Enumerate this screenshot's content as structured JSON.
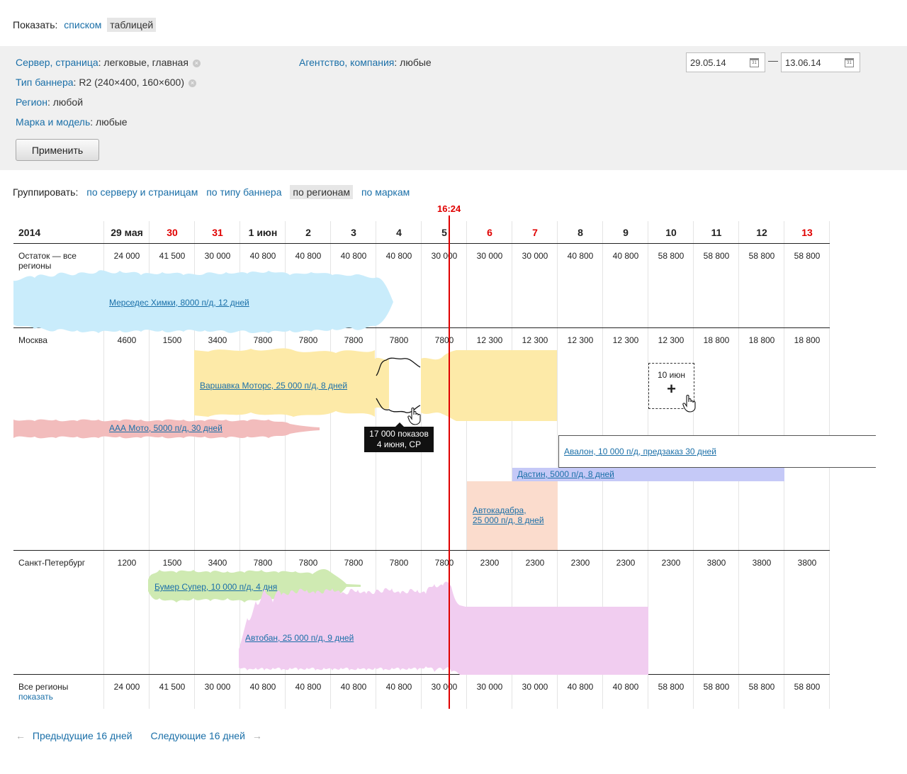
{
  "view": {
    "label": "Показать:",
    "list": "списком",
    "table": "таблицей"
  },
  "filters": {
    "server_link": "Сервер, страница",
    "server_val": ": легковые, главная",
    "banner_link": "Тип баннера",
    "banner_val": ": R2 (240×400, 160×600)",
    "region_link": "Регион",
    "region_val": ": любой",
    "brand_link": "Марка и модель",
    "brand_val": ": любые",
    "agency_link": "Агентство, компания",
    "agency_val": ": любые",
    "date_from": "29.05.14",
    "date_to": "13.06.14",
    "dash": "—",
    "apply": "Применить",
    "clear_symbol": "×"
  },
  "grouping": {
    "label": "Группировать:",
    "by_server": "по серверу и страницам",
    "by_type": "по типу баннера",
    "by_region": "по регионам",
    "by_brand": "по маркам"
  },
  "now_time": "16:24",
  "year": "2014",
  "days": [
    {
      "label": "29 мая",
      "weekend": false
    },
    {
      "label": "30",
      "weekend": true
    },
    {
      "label": "31",
      "weekend": true
    },
    {
      "label": "1 июн",
      "weekend": false
    },
    {
      "label": "2",
      "weekend": false
    },
    {
      "label": "3",
      "weekend": false
    },
    {
      "label": "4",
      "weekend": false
    },
    {
      "label": "5",
      "weekend": false
    },
    {
      "label": "6",
      "weekend": true
    },
    {
      "label": "7",
      "weekend": true
    },
    {
      "label": "8",
      "weekend": false
    },
    {
      "label": "9",
      "weekend": false
    },
    {
      "label": "10",
      "weekend": false
    },
    {
      "label": "11",
      "weekend": false
    },
    {
      "label": "12",
      "weekend": false
    },
    {
      "label": "13",
      "weekend": true
    }
  ],
  "rows": {
    "all_remain": {
      "label": "Остаток — все регионы",
      "values": [
        "24 000",
        "41 500",
        "30 000",
        "40 800",
        "40 800",
        "40 800",
        "40 800",
        "30 000",
        "30 000",
        "30 000",
        "40 800",
        "40 800",
        "58 800",
        "58 800",
        "58 800",
        "58 800"
      ]
    },
    "moscow": {
      "label": "Москва",
      "values": [
        "4600",
        "1500",
        "3400",
        "7800",
        "7800",
        "7800",
        "7800",
        "7800",
        "12 300",
        "12 300",
        "12 300",
        "12 300",
        "12 300",
        "18 800",
        "18 800",
        "18 800"
      ]
    },
    "spb": {
      "label": "Санкт-Петербург",
      "values": [
        "1200",
        "1500",
        "3400",
        "7800",
        "7800",
        "7800",
        "7800",
        "7800",
        "2300",
        "2300",
        "2300",
        "2300",
        "2300",
        "3800",
        "3800",
        "3800"
      ]
    },
    "all_regions": {
      "label": "Все регионы",
      "show_link": "показать",
      "values": [
        "24 000",
        "41 500",
        "30 000",
        "40 800",
        "40 800",
        "40 800",
        "40 800",
        "30 000",
        "30 000",
        "30 000",
        "40 800",
        "40 800",
        "58 800",
        "58 800",
        "58 800",
        "58 800"
      ]
    }
  },
  "campaigns": {
    "mercedes": "Мерседес Химки, 8000 п/д, 12 дней",
    "varshavka": "Варшавка Моторс, 25 000 п/д, 8 дней",
    "aaa_moto": "ААА Мото, 5000 п/д, 30 дней",
    "avalon": "Авалон, 10 000 п/д, предзаказ 30 дней",
    "dastin": "Дастин, 5000 п/д, 8 дней",
    "avtokadabra_1": "Автокадабра,",
    "avtokadabra_2": "25 000 п/д, 8 дней",
    "bumer": "Бумер Супер, 10 000 п/д, 4 дня",
    "avtoban": "Автобан, 25 000 п/д, 9 дней"
  },
  "tooltip": {
    "line1": "17 000 показов",
    "line2": "4 июня, СР"
  },
  "add_slot": {
    "date": "10 июн",
    "plus": "+"
  },
  "pager": {
    "prev": "Предыдущие 16 дней",
    "next": "Следующие 16 дней",
    "prev_arrow": "←",
    "next_arrow": "→"
  },
  "colors": {
    "link": "#1a6fa8",
    "weekend": "#e00000",
    "now_line": "#e00000",
    "mercedes": "#c9ecfb",
    "varshavka": "#fdeaa8",
    "aaa_moto": "#f2bcbc",
    "dastin": "#c5c9f7",
    "avtokadabra": "#fbdccd",
    "bumer": "#cfeab2",
    "avtoban": "#f1cdf0"
  }
}
